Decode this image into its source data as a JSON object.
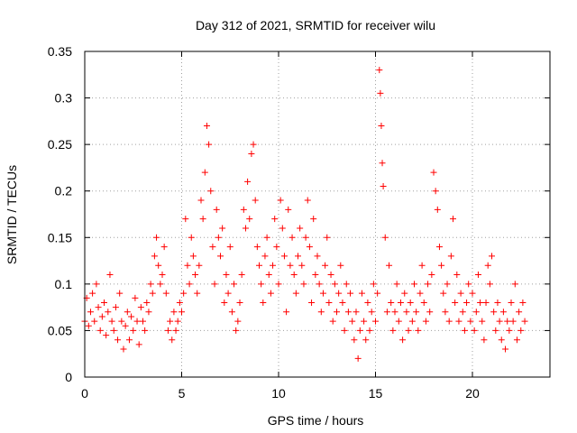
{
  "chart_data": {
    "type": "scatter",
    "title": "Day 312 of 2021, SRMTID for receiver wilu",
    "xlabel": "GPS time / hours",
    "ylabel": "SRMTID / TECUs",
    "xlim": [
      0,
      24
    ],
    "ylim": [
      0,
      0.35
    ],
    "x_ticks": [
      0,
      5,
      10,
      15,
      20
    ],
    "x_tick_labels": [
      "0",
      "5",
      "10",
      "15",
      "20"
    ],
    "y_ticks": [
      0,
      0.05,
      0.1,
      0.15,
      0.2,
      0.25,
      0.3,
      0.35
    ],
    "y_tick_labels": [
      "0",
      "0.05",
      "0.1",
      "0.15",
      "0.2",
      "0.25",
      "0.3",
      "0.35"
    ],
    "grid": true,
    "marker": "+",
    "color": "#ff0000",
    "series": [
      {
        "name": "SRMTID",
        "points": [
          [
            0.0,
            0.06
          ],
          [
            0.1,
            0.085
          ],
          [
            0.2,
            0.055
          ],
          [
            0.3,
            0.07
          ],
          [
            0.4,
            0.09
          ],
          [
            0.5,
            0.06
          ],
          [
            0.6,
            0.1
          ],
          [
            0.7,
            0.075
          ],
          [
            0.8,
            0.05
          ],
          [
            0.9,
            0.065
          ],
          [
            1.0,
            0.08
          ],
          [
            1.1,
            0.045
          ],
          [
            1.2,
            0.07
          ],
          [
            1.3,
            0.11
          ],
          [
            1.4,
            0.06
          ],
          [
            1.5,
            0.05
          ],
          [
            1.6,
            0.075
          ],
          [
            1.7,
            0.04
          ],
          [
            1.8,
            0.09
          ],
          [
            1.9,
            0.06
          ],
          [
            2.0,
            0.03
          ],
          [
            2.1,
            0.055
          ],
          [
            2.2,
            0.07
          ],
          [
            2.3,
            0.04
          ],
          [
            2.4,
            0.065
          ],
          [
            2.5,
            0.05
          ],
          [
            2.6,
            0.085
          ],
          [
            2.7,
            0.06
          ],
          [
            2.8,
            0.035
          ],
          [
            2.9,
            0.075
          ],
          [
            3.0,
            0.06
          ],
          [
            3.1,
            0.05
          ],
          [
            3.2,
            0.08
          ],
          [
            3.3,
            0.07
          ],
          [
            3.4,
            0.1
          ],
          [
            3.5,
            0.09
          ],
          [
            3.6,
            0.13
          ],
          [
            3.7,
            0.15
          ],
          [
            3.8,
            0.12
          ],
          [
            3.9,
            0.1
          ],
          [
            4.0,
            0.11
          ],
          [
            4.1,
            0.14
          ],
          [
            4.2,
            0.09
          ],
          [
            4.3,
            0.05
          ],
          [
            4.4,
            0.06
          ],
          [
            4.5,
            0.04
          ],
          [
            4.6,
            0.07
          ],
          [
            4.7,
            0.05
          ],
          [
            4.8,
            0.06
          ],
          [
            4.9,
            0.08
          ],
          [
            5.0,
            0.07
          ],
          [
            5.1,
            0.09
          ],
          [
            5.2,
            0.17
          ],
          [
            5.3,
            0.12
          ],
          [
            5.4,
            0.1
          ],
          [
            5.5,
            0.15
          ],
          [
            5.6,
            0.13
          ],
          [
            5.7,
            0.11
          ],
          [
            5.8,
            0.09
          ],
          [
            5.9,
            0.12
          ],
          [
            6.0,
            0.19
          ],
          [
            6.1,
            0.17
          ],
          [
            6.2,
            0.22
          ],
          [
            6.3,
            0.27
          ],
          [
            6.4,
            0.25
          ],
          [
            6.5,
            0.2
          ],
          [
            6.6,
            0.14
          ],
          [
            6.7,
            0.1
          ],
          [
            6.8,
            0.18
          ],
          [
            6.9,
            0.15
          ],
          [
            7.0,
            0.13
          ],
          [
            7.1,
            0.16
          ],
          [
            7.2,
            0.08
          ],
          [
            7.3,
            0.11
          ],
          [
            7.4,
            0.09
          ],
          [
            7.5,
            0.14
          ],
          [
            7.6,
            0.07
          ],
          [
            7.7,
            0.1
          ],
          [
            7.8,
            0.05
          ],
          [
            7.9,
            0.06
          ],
          [
            8.0,
            0.08
          ],
          [
            8.1,
            0.11
          ],
          [
            8.2,
            0.18
          ],
          [
            8.3,
            0.16
          ],
          [
            8.4,
            0.21
          ],
          [
            8.5,
            0.17
          ],
          [
            8.6,
            0.24
          ],
          [
            8.7,
            0.25
          ],
          [
            8.8,
            0.19
          ],
          [
            8.9,
            0.14
          ],
          [
            9.0,
            0.12
          ],
          [
            9.1,
            0.1
          ],
          [
            9.2,
            0.08
          ],
          [
            9.3,
            0.13
          ],
          [
            9.4,
            0.15
          ],
          [
            9.5,
            0.11
          ],
          [
            9.6,
            0.09
          ],
          [
            9.7,
            0.12
          ],
          [
            9.8,
            0.17
          ],
          [
            9.9,
            0.14
          ],
          [
            10.0,
            0.1
          ],
          [
            10.1,
            0.19
          ],
          [
            10.2,
            0.16
          ],
          [
            10.3,
            0.13
          ],
          [
            10.4,
            0.07
          ],
          [
            10.5,
            0.18
          ],
          [
            10.6,
            0.12
          ],
          [
            10.7,
            0.15
          ],
          [
            10.8,
            0.11
          ],
          [
            10.9,
            0.09
          ],
          [
            11.0,
            0.13
          ],
          [
            11.1,
            0.16
          ],
          [
            11.2,
            0.12
          ],
          [
            11.3,
            0.1
          ],
          [
            11.4,
            0.15
          ],
          [
            11.5,
            0.19
          ],
          [
            11.6,
            0.14
          ],
          [
            11.7,
            0.08
          ],
          [
            11.8,
            0.17
          ],
          [
            11.9,
            0.11
          ],
          [
            12.0,
            0.13
          ],
          [
            12.1,
            0.1
          ],
          [
            12.2,
            0.07
          ],
          [
            12.3,
            0.09
          ],
          [
            12.4,
            0.12
          ],
          [
            12.5,
            0.15
          ],
          [
            12.6,
            0.08
          ],
          [
            12.7,
            0.11
          ],
          [
            12.8,
            0.06
          ],
          [
            12.9,
            0.1
          ],
          [
            13.0,
            0.07
          ],
          [
            13.1,
            0.09
          ],
          [
            13.2,
            0.12
          ],
          [
            13.3,
            0.08
          ],
          [
            13.4,
            0.05
          ],
          [
            13.5,
            0.1
          ],
          [
            13.6,
            0.07
          ],
          [
            13.7,
            0.09
          ],
          [
            13.8,
            0.06
          ],
          [
            13.9,
            0.04
          ],
          [
            14.0,
            0.07
          ],
          [
            14.1,
            0.02
          ],
          [
            14.2,
            0.05
          ],
          [
            14.3,
            0.09
          ],
          [
            14.4,
            0.06
          ],
          [
            14.5,
            0.04
          ],
          [
            14.6,
            0.08
          ],
          [
            14.7,
            0.05
          ],
          [
            14.8,
            0.07
          ],
          [
            14.9,
            0.1
          ],
          [
            15.0,
            0.06
          ],
          [
            15.1,
            0.09
          ],
          [
            15.2,
            0.33
          ],
          [
            15.25,
            0.305
          ],
          [
            15.3,
            0.27
          ],
          [
            15.35,
            0.23
          ],
          [
            15.4,
            0.205
          ],
          [
            15.5,
            0.15
          ],
          [
            15.6,
            0.07
          ],
          [
            15.7,
            0.12
          ],
          [
            15.8,
            0.08
          ],
          [
            15.9,
            0.05
          ],
          [
            16.0,
            0.07
          ],
          [
            16.1,
            0.1
          ],
          [
            16.2,
            0.06
          ],
          [
            16.3,
            0.08
          ],
          [
            16.4,
            0.04
          ],
          [
            16.5,
            0.09
          ],
          [
            16.6,
            0.07
          ],
          [
            16.7,
            0.05
          ],
          [
            16.8,
            0.08
          ],
          [
            16.9,
            0.06
          ],
          [
            17.0,
            0.1
          ],
          [
            17.1,
            0.07
          ],
          [
            17.2,
            0.05
          ],
          [
            17.3,
            0.09
          ],
          [
            17.4,
            0.12
          ],
          [
            17.5,
            0.08
          ],
          [
            17.6,
            0.06
          ],
          [
            17.7,
            0.1
          ],
          [
            17.8,
            0.07
          ],
          [
            17.9,
            0.11
          ],
          [
            18.0,
            0.22
          ],
          [
            18.1,
            0.2
          ],
          [
            18.2,
            0.18
          ],
          [
            18.3,
            0.14
          ],
          [
            18.4,
            0.12
          ],
          [
            18.5,
            0.09
          ],
          [
            18.6,
            0.07
          ],
          [
            18.7,
            0.1
          ],
          [
            18.8,
            0.06
          ],
          [
            18.9,
            0.13
          ],
          [
            19.0,
            0.17
          ],
          [
            19.1,
            0.08
          ],
          [
            19.2,
            0.11
          ],
          [
            19.3,
            0.06
          ],
          [
            19.4,
            0.09
          ],
          [
            19.5,
            0.07
          ],
          [
            19.6,
            0.05
          ],
          [
            19.7,
            0.08
          ],
          [
            19.8,
            0.1
          ],
          [
            19.9,
            0.06
          ],
          [
            20.0,
            0.09
          ],
          [
            20.1,
            0.05
          ],
          [
            20.2,
            0.07
          ],
          [
            20.3,
            0.11
          ],
          [
            20.4,
            0.08
          ],
          [
            20.5,
            0.06
          ],
          [
            20.6,
            0.04
          ],
          [
            20.7,
            0.08
          ],
          [
            20.8,
            0.12
          ],
          [
            20.9,
            0.1
          ],
          [
            21.0,
            0.13
          ],
          [
            21.1,
            0.07
          ],
          [
            21.2,
            0.05
          ],
          [
            21.3,
            0.08
          ],
          [
            21.4,
            0.06
          ],
          [
            21.5,
            0.04
          ],
          [
            21.6,
            0.07
          ],
          [
            21.7,
            0.03
          ],
          [
            21.8,
            0.06
          ],
          [
            21.9,
            0.05
          ],
          [
            22.0,
            0.08
          ],
          [
            22.1,
            0.06
          ],
          [
            22.2,
            0.1
          ],
          [
            22.3,
            0.04
          ],
          [
            22.4,
            0.07
          ],
          [
            22.5,
            0.05
          ],
          [
            22.6,
            0.08
          ],
          [
            22.7,
            0.06
          ]
        ]
      }
    ]
  }
}
